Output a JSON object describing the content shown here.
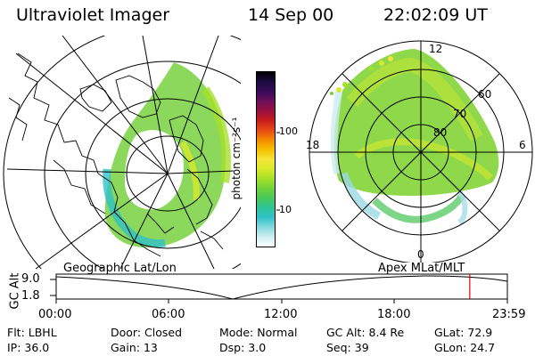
{
  "header": {
    "title": "Ultraviolet Imager",
    "date": "14 Sep 00",
    "time": "22:02:09 UT"
  },
  "colorbar": {
    "label": "photon cm⁻²s⁻¹",
    "ticks": [
      "100",
      "10"
    ],
    "colors": [
      "#000000",
      "#1a0a40",
      "#3b0a5c",
      "#6a0f5a",
      "#9a1040",
      "#c81c1c",
      "#e64a14",
      "#f28c00",
      "#f5c000",
      "#f4e43a",
      "#d8ea2a",
      "#a6e02a",
      "#70d23a",
      "#48c95a",
      "#2fc59a",
      "#2fc2c8",
      "#86d9e0",
      "#cdeef0",
      "#ffffff"
    ]
  },
  "polar": {
    "mlt_labels": [
      "12",
      "18",
      "6",
      "0"
    ],
    "lat_labels": [
      "60",
      "70",
      "80"
    ]
  },
  "panels": {
    "left_label": "Geographic Lat/Lon",
    "right_label": "Apex MLat/MLT"
  },
  "timeline": {
    "axis_label": "GC Alt",
    "y_ticks": [
      "9.0",
      "1.8"
    ],
    "x_ticks": [
      "00:00",
      "06:00",
      "12:00",
      "18:00",
      "23:59"
    ],
    "current_time_hours": 22.0
  },
  "info": {
    "row1": [
      {
        "label": "Flt:",
        "value": "LBHL"
      },
      {
        "label": "Door:",
        "value": "Closed"
      },
      {
        "label": "Mode:",
        "value": "Normal"
      },
      {
        "label": "GC Alt:",
        "value": "8.4 Re"
      },
      {
        "label": "GLat:",
        "value": "72.9"
      }
    ],
    "row2": [
      {
        "label": "IP:",
        "value": "36.0"
      },
      {
        "label": "Gain:",
        "value": "13"
      },
      {
        "label": "Dsp:",
        "value": "3.0"
      },
      {
        "label": "Seq:",
        "value": "39"
      },
      {
        "label": "GLon:",
        "value": "24.7"
      }
    ]
  }
}
